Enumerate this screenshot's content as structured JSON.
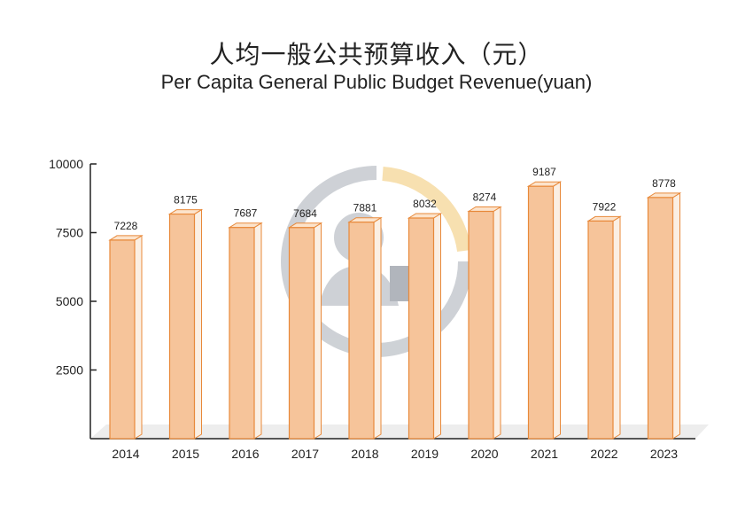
{
  "chart_data": {
    "type": "bar",
    "title": "人均一般公共预算收入（元）",
    "subtitle": "Per Capita General Public Budget Revenue(yuan)",
    "categories": [
      "2014",
      "2015",
      "2016",
      "2017",
      "2018",
      "2019",
      "2020",
      "2021",
      "2022",
      "2023"
    ],
    "values": [
      7228,
      8175,
      7687,
      7684,
      7881,
      8032,
      8274,
      9187,
      7922,
      8778
    ],
    "ylim": [
      0,
      10000
    ],
    "yticks": [
      2500,
      5000,
      7500,
      10000
    ],
    "grid": false,
    "legend": "none",
    "colors": {
      "bar_front": "#F6C49A",
      "bar_edge": "#E8893A",
      "bar_top": "#FCE3CB",
      "bar_side": "#FBEFE3",
      "floor": "#EDEDED",
      "watermark": "#C9CDD2",
      "watermark_accent": "#F7DDA8"
    }
  }
}
